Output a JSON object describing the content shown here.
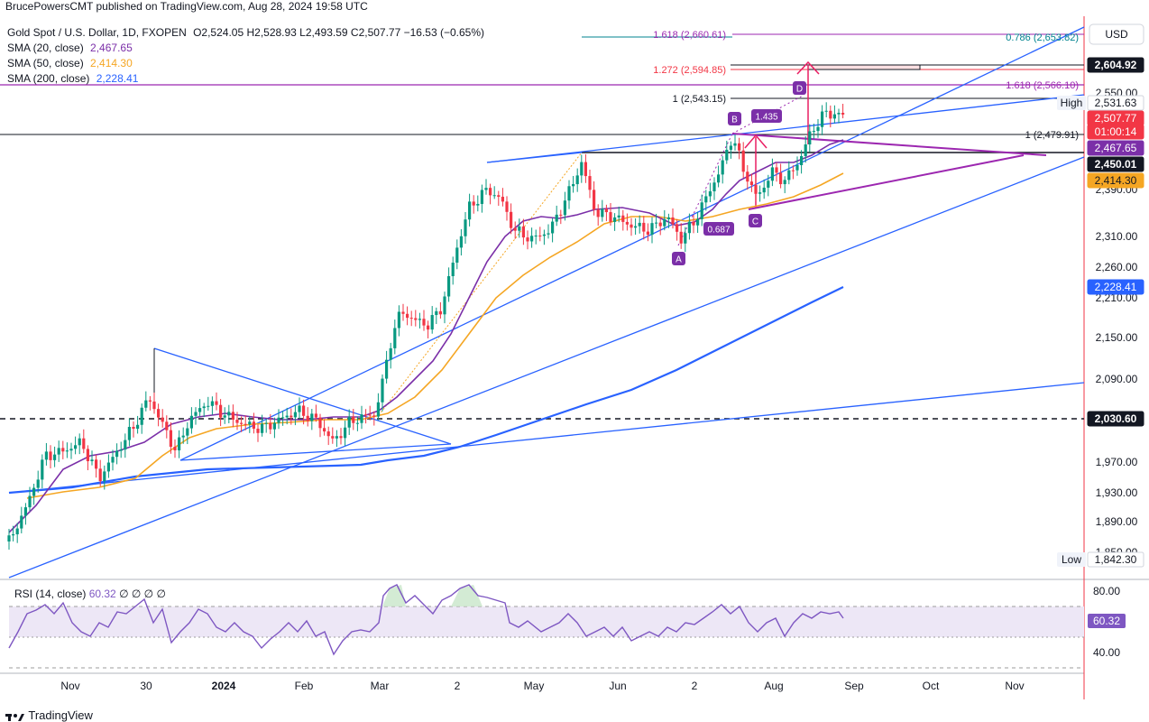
{
  "header": {
    "text": "BrucePowersCMT published on TradingView.com, Aug 28, 2024 19:58 UTC"
  },
  "legend": {
    "symbol": "Gold Spot / U.S. Dollar, 1D, FXOPEN",
    "ohlc": "O2,524.05 H2,528.93 L2,493.59 C2,507.77 −16.53 (−0.65%)",
    "sma20": {
      "label": "SMA (20, close)",
      "value": "2,467.65",
      "color": "#7b2fa8"
    },
    "sma50": {
      "label": "SMA (50, close)",
      "value": "2,414.30",
      "color": "#f5a623"
    },
    "sma200": {
      "label": "SMA (200, close)",
      "value": "2,228.41",
      "color": "#2962ff"
    }
  },
  "currency": "USD",
  "price_scale": {
    "ticks": [
      "2,550.00",
      "2,390.00",
      "2,310.00",
      "2,260.00",
      "2,210.00",
      "2,150.00",
      "2,090.00",
      "2,030.00",
      "1,970.00",
      "1,930.00",
      "1,890.00",
      "1,850.00"
    ],
    "badges": [
      {
        "text": "2,604.92",
        "bg": "#131722",
        "fg": "#ffffff"
      },
      {
        "text": "2,531.63",
        "bg": "#ffffff",
        "fg": "#131722",
        "prefix": "High"
      },
      {
        "text": "2,507.77",
        "bg": "#f23645",
        "fg": "#ffffff"
      },
      {
        "text": "01:00:14",
        "bg": "#f23645",
        "fg": "#ffffff"
      },
      {
        "text": "2,467.65",
        "bg": "#7b2fa8",
        "fg": "#ffffff"
      },
      {
        "text": "2,450.01",
        "bg": "#131722",
        "fg": "#ffffff"
      },
      {
        "text": "2,414.30",
        "bg": "#f5a623",
        "fg": "#131722"
      },
      {
        "text": "2,228.41",
        "bg": "#2962ff",
        "fg": "#ffffff"
      },
      {
        "text": "2,030.60",
        "bg": "#131722",
        "fg": "#ffffff"
      },
      {
        "text": "1,842.30",
        "bg": "#ffffff",
        "fg": "#131722",
        "prefix": "Low"
      }
    ]
  },
  "time_axis": [
    "Nov",
    "30",
    "2024",
    "Feb",
    "Mar",
    "2",
    "May",
    "Jun",
    "2",
    "Aug",
    "Sep",
    "Oct",
    "Nov"
  ],
  "annotations": {
    "fib_top_left": "1.618 (2,660.61)",
    "fib_top_right": "0.786 (2,653.82)",
    "fib_1272": "1.272 (2,594.85)",
    "fib_1618_b": "1.618 (2,566.10)",
    "fib_1_2543": "1 (2,543.15)",
    "fib_1_2479": "1 (2,479.91)",
    "ratio_1435": "1.435",
    "ratio_0687": "0.687",
    "pivot_a": "A",
    "pivot_b": "B",
    "pivot_c": "C",
    "pivot_d": "D"
  },
  "rsi": {
    "label": "RSI (14, close)",
    "value": "60.32",
    "extras": "∅ ∅ ∅ ∅",
    "ticks": [
      "80.00",
      "40.00"
    ],
    "color": "#7e57c2"
  },
  "footer": {
    "brand": "TradingView"
  },
  "chart_data": {
    "type": "line",
    "title": "Gold Spot / U.S. Dollar, 1D, FXOPEN",
    "ylim": [
      1842.3,
      2660.61
    ],
    "x": [
      "Nov",
      "30",
      "2024",
      "Feb",
      "Mar",
      "2",
      "May",
      "Jun",
      "2",
      "Aug",
      "Sep",
      "Oct",
      "Nov"
    ],
    "series": [
      {
        "name": "SMA (20, close)",
        "color": "#7b2fa8",
        "last": 2467.65
      },
      {
        "name": "SMA (50, close)",
        "color": "#f5a623",
        "last": 2414.3
      },
      {
        "name": "SMA (200, close)",
        "color": "#2962ff",
        "last": 2228.41
      }
    ],
    "key_levels": [
      2660.61,
      2653.82,
      2604.92,
      2594.85,
      2566.1,
      2543.15,
      2531.63,
      2507.77,
      2479.91,
      2467.65,
      2450.01,
      2414.3,
      2228.41,
      2030.6,
      1842.3
    ],
    "ohlc_last": {
      "open": 2524.05,
      "high": 2528.93,
      "low": 2493.59,
      "close": 2507.77,
      "change": -16.53,
      "change_pct": -0.65
    },
    "rsi_last": 60.32,
    "rsi_ylim": [
      20,
      90
    ]
  }
}
